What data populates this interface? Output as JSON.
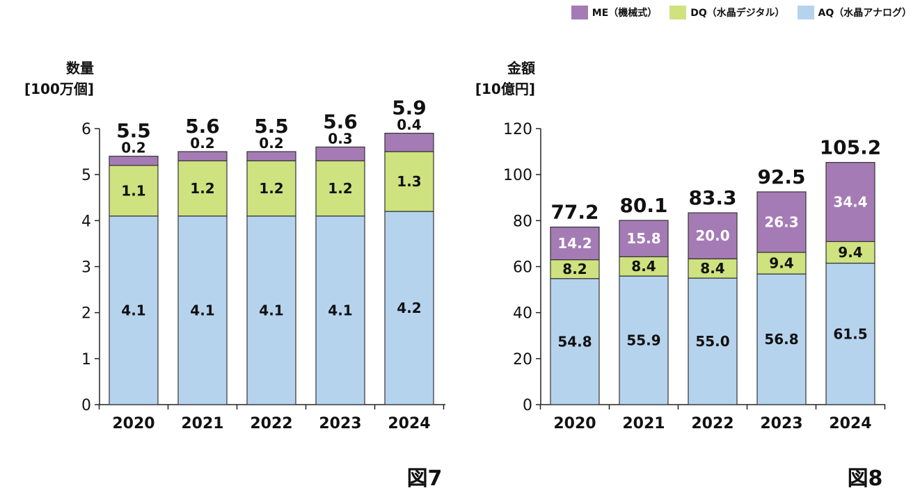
{
  "legend": [
    {
      "label": "ME（機械式）",
      "color": "#a57bb5"
    },
    {
      "label": "DQ（水晶デジタル）",
      "color": "#cee27f"
    },
    {
      "label": "AQ（水晶アナログ）",
      "color": "#b6d3ee"
    }
  ],
  "chart_data": [
    {
      "type": "bar",
      "stacked": true,
      "figure_label": "図7",
      "ylabel_lines": [
        "数量",
        "[100万個]"
      ],
      "categories": [
        "2020",
        "2021",
        "2022",
        "2023",
        "2024"
      ],
      "series": [
        {
          "name": "AQ（水晶アナログ）",
          "values": [
            4.1,
            4.1,
            4.1,
            4.1,
            4.2
          ],
          "color": "#b6d3ee"
        },
        {
          "name": "DQ（水晶デジタル）",
          "values": [
            1.1,
            1.2,
            1.2,
            1.2,
            1.3
          ],
          "color": "#cee27f"
        },
        {
          "name": "ME（機械式）",
          "values": [
            0.2,
            0.2,
            0.2,
            0.3,
            0.4
          ],
          "color": "#a57bb5"
        }
      ],
      "me_labels_above": true,
      "totals": [
        "5.5",
        "5.6",
        "5.5",
        "5.6",
        "5.9"
      ],
      "ylim": [
        0,
        6
      ],
      "yticks": [
        0,
        1,
        2,
        3,
        4,
        5,
        6
      ],
      "grid": false
    },
    {
      "type": "bar",
      "stacked": true,
      "figure_label": "図8",
      "ylabel_lines": [
        "金額",
        "[10億円]"
      ],
      "categories": [
        "2020",
        "2021",
        "2022",
        "2023",
        "2024"
      ],
      "series": [
        {
          "name": "AQ（水晶アナログ）",
          "values": [
            54.8,
            55.9,
            55.0,
            56.8,
            61.5
          ],
          "color": "#b6d3ee"
        },
        {
          "name": "DQ（水晶デジタル）",
          "values": [
            8.2,
            8.4,
            8.4,
            9.4,
            9.4
          ],
          "color": "#cee27f"
        },
        {
          "name": "ME（機械式）",
          "values": [
            14.2,
            15.8,
            20.0,
            26.3,
            34.4
          ],
          "color": "#a57bb5"
        }
      ],
      "me_labels_above": false,
      "totals": [
        "77.2",
        "80.1",
        "83.3",
        "92.5",
        "105.2"
      ],
      "ylim": [
        0,
        120
      ],
      "yticks": [
        0,
        20,
        40,
        60,
        80,
        100,
        120
      ],
      "grid": false
    }
  ]
}
